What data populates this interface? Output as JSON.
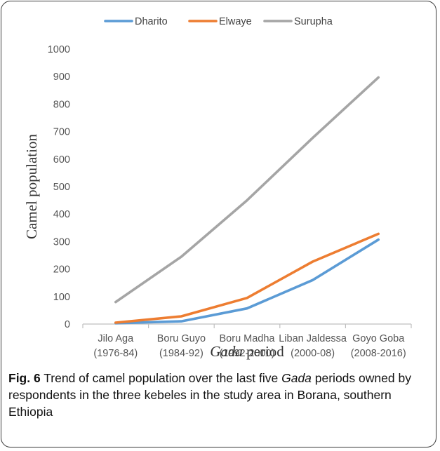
{
  "chart_data": {
    "type": "line",
    "title": "",
    "ylabel": "Camel population",
    "xlabel": {
      "italic_part": "Gada",
      "rest": " period"
    },
    "ylim": [
      0,
      1000
    ],
    "yticks": [
      0,
      100,
      200,
      300,
      400,
      500,
      600,
      700,
      800,
      900,
      1000
    ],
    "categories": [
      [
        "Jilo Aga",
        "(1976-84)"
      ],
      [
        "Boru Guyo",
        "(1984-92)"
      ],
      [
        "Boru Madha",
        "(1992-2000)"
      ],
      [
        "Liban Jaldessa",
        "(2000-08)"
      ],
      [
        "Goyo Goba",
        "(2008-2016)"
      ]
    ],
    "legend_position": "top",
    "grid": false,
    "series": [
      {
        "name": "Dharito",
        "color": "#5B9BD5",
        "values": [
          3,
          10,
          57,
          160,
          307
        ]
      },
      {
        "name": "Elwaye",
        "color": "#ED7D31",
        "values": [
          5,
          28,
          95,
          227,
          328
        ]
      },
      {
        "name": "Surupha",
        "color": "#A5A5A5",
        "values": [
          80,
          245,
          450,
          677,
          897
        ]
      }
    ]
  },
  "caption": {
    "fig_label": "Fig. 6",
    "text_before": " Trend of camel population over the last five ",
    "italic": "Gada",
    "text_after": " periods owned by respondents in the three kebeles in the study area in Borana, southern Ethiopia"
  }
}
